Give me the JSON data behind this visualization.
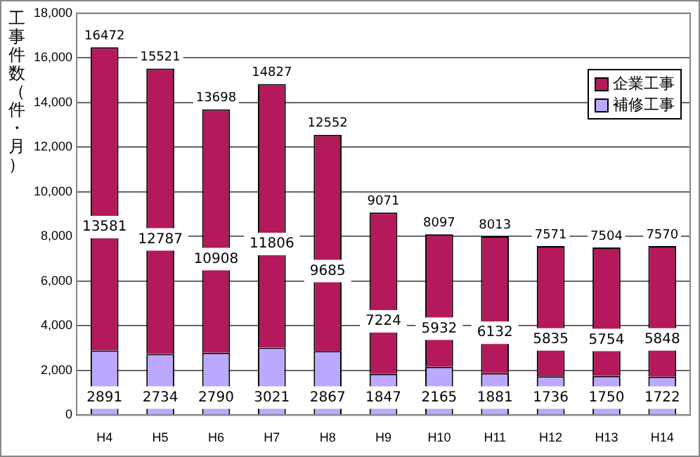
{
  "chart_data": {
    "type": "bar",
    "ylabel": "工事件数（件・月）",
    "categories": [
      "H4",
      "H5",
      "H6",
      "H7",
      "H8",
      "H9",
      "H10",
      "H11",
      "H12",
      "H13",
      "H14"
    ],
    "series": [
      {
        "name": "補修工事",
        "color": "#bda8ff",
        "values": [
          2891,
          2734,
          2790,
          3021,
          2867,
          1847,
          2165,
          1881,
          1736,
          1750,
          1722
        ]
      },
      {
        "name": "企業工事",
        "color": "#b3195b",
        "values": [
          13581,
          12787,
          10908,
          11806,
          9685,
          7224,
          5932,
          6132,
          5835,
          5754,
          5848
        ]
      }
    ],
    "stacked": true,
    "data_labels": true,
    "totals": [
      "16472",
      "15521",
      "13698",
      "14827",
      "12552",
      "9071",
      "8097",
      "8013",
      "7571",
      "7504",
      "7570"
    ],
    "ylim": [
      0,
      18000
    ],
    "yticks": [
      {
        "value": 0,
        "label": "0"
      },
      {
        "value": 2000,
        "label": "2,000"
      },
      {
        "value": 4000,
        "label": "4,000"
      },
      {
        "value": 6000,
        "label": "6,000"
      },
      {
        "value": 8000,
        "label": "8,000"
      },
      {
        "value": 10000,
        "label": "10,000"
      },
      {
        "value": 12000,
        "label": "12,000"
      },
      {
        "value": 14000,
        "label": "14,000"
      },
      {
        "value": 16000,
        "label": "16,000"
      },
      {
        "value": 18000,
        "label": "18,000"
      }
    ],
    "grid": "y",
    "legend": "top right"
  }
}
